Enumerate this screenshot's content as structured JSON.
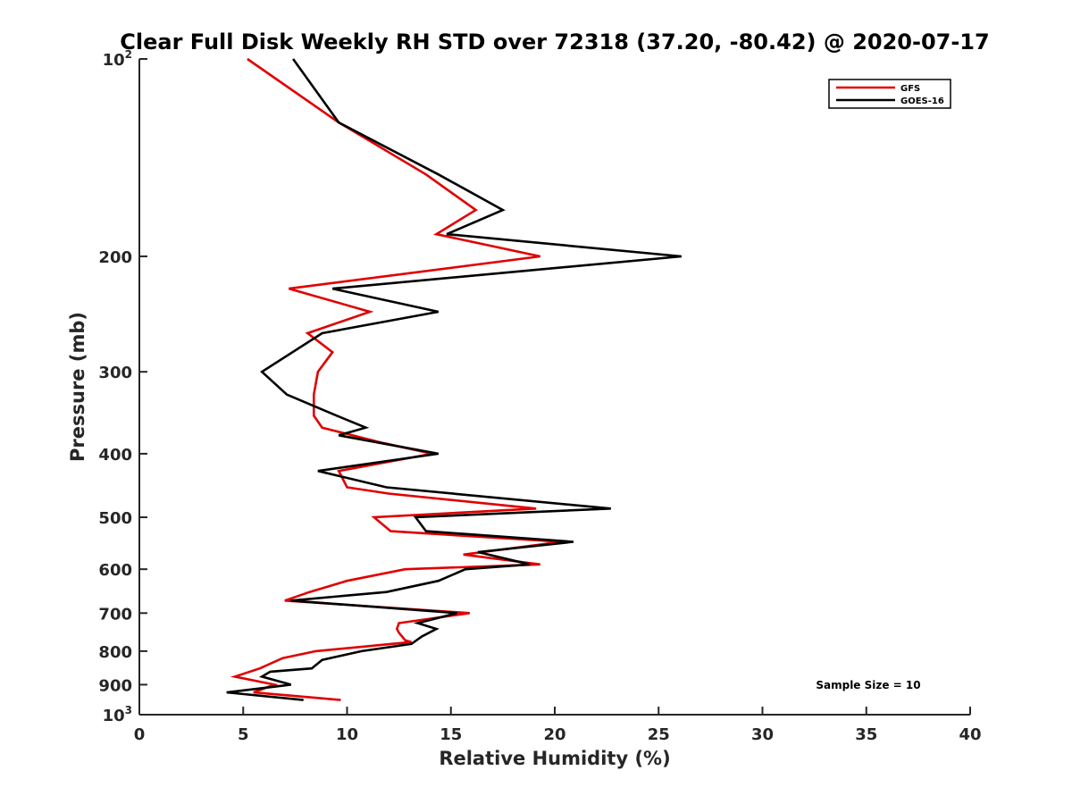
{
  "chart_data": {
    "type": "line",
    "title": "Clear Full Disk Weekly RH STD over 72318 (37.20, -80.42) @ 2020-07-17",
    "xlabel": "Relative Humidity (%)",
    "ylabel": "Pressure (mb)",
    "xlim": [
      0,
      40
    ],
    "ylim": [
      100,
      1000
    ],
    "y_scale": "log",
    "y_reversed": true,
    "x_ticks": [
      0,
      5,
      10,
      15,
      20,
      25,
      30,
      35,
      40
    ],
    "x_tick_labels": [
      "0",
      "5",
      "10",
      "15",
      "20",
      "25",
      "30",
      "35",
      "40"
    ],
    "y_ticks": [
      {
        "value": 100,
        "base": "10",
        "exp": "2"
      },
      {
        "value": 200,
        "label": "200"
      },
      {
        "value": 300,
        "label": "300"
      },
      {
        "value": 400,
        "label": "400"
      },
      {
        "value": 500,
        "label": "500"
      },
      {
        "value": 600,
        "label": "600"
      },
      {
        "value": 700,
        "label": "700"
      },
      {
        "value": 800,
        "label": "800"
      },
      {
        "value": 900,
        "label": "900"
      },
      {
        "value": 1000,
        "base": "10",
        "exp": "3"
      }
    ],
    "grid": false,
    "legend_position": "top-right",
    "annotation": "Sample Size = 10",
    "series": [
      {
        "name": "GFS",
        "color": "#e00000",
        "points": [
          {
            "x": 5.2,
            "y": 100
          },
          {
            "x": 9.6,
            "y": 125
          },
          {
            "x": 13.8,
            "y": 150
          },
          {
            "x": 16.2,
            "y": 170
          },
          {
            "x": 14.3,
            "y": 185
          },
          {
            "x": 19.3,
            "y": 200
          },
          {
            "x": 7.2,
            "y": 224
          },
          {
            "x": 11.1,
            "y": 243
          },
          {
            "x": 8.1,
            "y": 262
          },
          {
            "x": 9.3,
            "y": 280
          },
          {
            "x": 8.6,
            "y": 300
          },
          {
            "x": 8.4,
            "y": 325
          },
          {
            "x": 8.4,
            "y": 350
          },
          {
            "x": 8.8,
            "y": 365
          },
          {
            "x": 11.7,
            "y": 385
          },
          {
            "x": 14.1,
            "y": 400
          },
          {
            "x": 9.6,
            "y": 425
          },
          {
            "x": 10.0,
            "y": 450
          },
          {
            "x": 12.0,
            "y": 460
          },
          {
            "x": 19.1,
            "y": 485
          },
          {
            "x": 11.3,
            "y": 500
          },
          {
            "x": 12.1,
            "y": 525
          },
          {
            "x": 20.3,
            "y": 545
          },
          {
            "x": 15.6,
            "y": 570
          },
          {
            "x": 19.3,
            "y": 590
          },
          {
            "x": 12.8,
            "y": 600
          },
          {
            "x": 10.0,
            "y": 625
          },
          {
            "x": 8.2,
            "y": 650
          },
          {
            "x": 7.0,
            "y": 670
          },
          {
            "x": 15.9,
            "y": 700
          },
          {
            "x": 12.5,
            "y": 725
          },
          {
            "x": 12.4,
            "y": 740
          },
          {
            "x": 12.5,
            "y": 750
          },
          {
            "x": 12.8,
            "y": 770
          },
          {
            "x": 13.1,
            "y": 775
          },
          {
            "x": 8.5,
            "y": 800
          },
          {
            "x": 6.9,
            "y": 820
          },
          {
            "x": 5.8,
            "y": 850
          },
          {
            "x": 4.6,
            "y": 875
          },
          {
            "x": 6.5,
            "y": 900
          },
          {
            "x": 5.5,
            "y": 925
          },
          {
            "x": 9.7,
            "y": 950
          }
        ]
      },
      {
        "name": "GOES-16",
        "color": "#000000",
        "points": [
          {
            "x": 7.4,
            "y": 100
          },
          {
            "x": 9.6,
            "y": 125
          },
          {
            "x": 14.4,
            "y": 150
          },
          {
            "x": 17.5,
            "y": 170
          },
          {
            "x": 14.8,
            "y": 185
          },
          {
            "x": 26.1,
            "y": 200
          },
          {
            "x": 9.3,
            "y": 224
          },
          {
            "x": 14.4,
            "y": 243
          },
          {
            "x": 8.8,
            "y": 262
          },
          {
            "x": 5.9,
            "y": 300
          },
          {
            "x": 7.1,
            "y": 325
          },
          {
            "x": 9.5,
            "y": 350
          },
          {
            "x": 10.9,
            "y": 365
          },
          {
            "x": 9.6,
            "y": 375
          },
          {
            "x": 14.4,
            "y": 400
          },
          {
            "x": 8.6,
            "y": 425
          },
          {
            "x": 11.9,
            "y": 450
          },
          {
            "x": 22.7,
            "y": 485
          },
          {
            "x": 13.3,
            "y": 500
          },
          {
            "x": 13.8,
            "y": 525
          },
          {
            "x": 20.9,
            "y": 545
          },
          {
            "x": 16.3,
            "y": 565
          },
          {
            "x": 18.8,
            "y": 590
          },
          {
            "x": 15.7,
            "y": 600
          },
          {
            "x": 14.4,
            "y": 625
          },
          {
            "x": 11.9,
            "y": 650
          },
          {
            "x": 7.3,
            "y": 670
          },
          {
            "x": 15.3,
            "y": 700
          },
          {
            "x": 13.4,
            "y": 725
          },
          {
            "x": 14.3,
            "y": 740
          },
          {
            "x": 13.6,
            "y": 760
          },
          {
            "x": 13.1,
            "y": 780
          },
          {
            "x": 10.7,
            "y": 800
          },
          {
            "x": 8.8,
            "y": 825
          },
          {
            "x": 8.3,
            "y": 850
          },
          {
            "x": 6.3,
            "y": 860
          },
          {
            "x": 5.9,
            "y": 875
          },
          {
            "x": 7.3,
            "y": 900
          },
          {
            "x": 4.2,
            "y": 925
          },
          {
            "x": 7.9,
            "y": 950
          }
        ]
      }
    ]
  }
}
